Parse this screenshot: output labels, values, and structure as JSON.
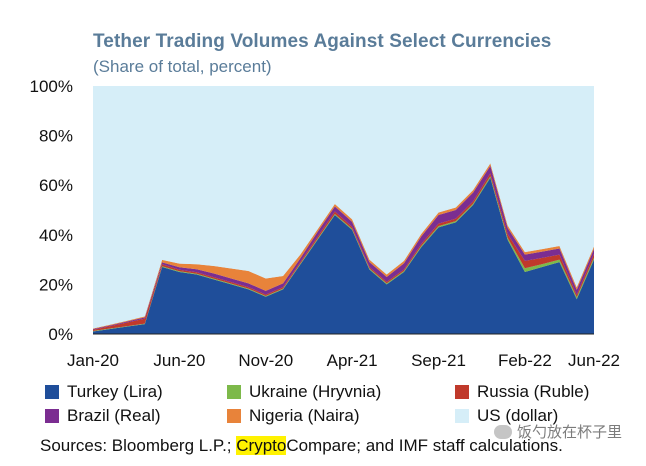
{
  "chart_data": {
    "type": "area",
    "stacked": true,
    "title": "Tether Trading Volumes Against Select Currencies",
    "subtitle": "(Share of total, percent)",
    "ylim": [
      0,
      100
    ],
    "y_ticks": [
      "0%",
      "20%",
      "40%",
      "60%",
      "80%",
      "100%"
    ],
    "x_ticks": [
      "Jan-20",
      "Jun-20",
      "Nov-20",
      "Apr-21",
      "Sep-21",
      "Feb-22",
      "Jun-22"
    ],
    "x": [
      "Jan-20",
      "Feb-20",
      "Mar-20",
      "Apr-20",
      "May-20",
      "Jun-20",
      "Jul-20",
      "Aug-20",
      "Sep-20",
      "Oct-20",
      "Nov-20",
      "Dec-20",
      "Jan-21",
      "Feb-21",
      "Mar-21",
      "Apr-21",
      "May-21",
      "Jun-21",
      "Jul-21",
      "Aug-21",
      "Sep-21",
      "Oct-21",
      "Nov-21",
      "Dec-21",
      "Jan-22",
      "Feb-22",
      "Mar-22",
      "Apr-22",
      "May-22",
      "Jun-22"
    ],
    "series": [
      {
        "name": "Turkey (Lira)",
        "color": "#1f4e9a",
        "values": [
          1,
          2,
          3,
          4,
          27,
          25,
          24,
          22,
          20,
          18,
          15,
          18,
          28,
          38,
          48,
          42,
          26,
          20,
          25,
          35,
          43,
          45,
          52,
          63,
          38,
          25,
          27,
          29,
          14,
          30
        ]
      },
      {
        "name": "Ukraine (Hryvnia)",
        "color": "#7db94a",
        "values": [
          0.2,
          0.2,
          0.2,
          0.2,
          0.3,
          0.3,
          0.3,
          0.3,
          0.3,
          0.3,
          0.3,
          0.3,
          0.4,
          0.4,
          0.4,
          0.4,
          0.4,
          0.4,
          0.4,
          0.5,
          0.5,
          0.5,
          0.5,
          0.6,
          0.8,
          1.5,
          1.2,
          1.0,
          0.8,
          0.8
        ]
      },
      {
        "name": "Russia (Ruble)",
        "color": "#c0392b",
        "values": [
          0.5,
          1.0,
          1.5,
          2.0,
          0.8,
          0.6,
          0.6,
          0.6,
          0.6,
          0.6,
          0.6,
          0.6,
          0.6,
          0.8,
          1.0,
          0.8,
          0.6,
          0.6,
          0.6,
          0.8,
          1.0,
          1.0,
          1.0,
          1.2,
          1.5,
          3.0,
          2.5,
          2.0,
          1.0,
          1.5
        ]
      },
      {
        "name": "Brazil (Real)",
        "color": "#7b2d91",
        "values": [
          0.3,
          0.3,
          0.4,
          0.5,
          0.8,
          1.0,
          1.2,
          1.5,
          1.5,
          1.5,
          1.5,
          1.5,
          1.5,
          2.0,
          2.0,
          2.0,
          2.0,
          2.0,
          2.5,
          3.0,
          3.5,
          3.5,
          3.5,
          3.0,
          2.5,
          2.5,
          2.5,
          2.5,
          2.0,
          2.0
        ]
      },
      {
        "name": "Nigeria (Naira)",
        "color": "#e8833a",
        "values": [
          0.2,
          0.3,
          0.3,
          0.4,
          1.0,
          1.5,
          2.0,
          3.0,
          4.0,
          5.0,
          5.0,
          3.0,
          1.5,
          1.0,
          1.0,
          1.0,
          1.0,
          1.0,
          1.0,
          1.0,
          1.0,
          1.0,
          1.0,
          1.0,
          1.0,
          1.0,
          1.0,
          1.0,
          1.0,
          1.0
        ]
      },
      {
        "name": "US (dollar)",
        "color": "#d6eef8",
        "values": [
          97.8,
          96.2,
          94.6,
          92.9,
          70.1,
          71.6,
          71.9,
          72.6,
          73.6,
          74.6,
          77.6,
          76.6,
          68.0,
          57.8,
          47.6,
          53.8,
          70.0,
          76.0,
          70.5,
          59.7,
          51.0,
          49.0,
          42.0,
          31.2,
          56.2,
          67.0,
          65.8,
          64.5,
          81.2,
          64.7
        ]
      }
    ]
  },
  "source": {
    "prefix": "Sources: Bloomberg L.P.; ",
    "highlight": "Crypto",
    "suffix": "Compare; and IMF staff calculations."
  },
  "watermark": "饭勺放在杯子里"
}
